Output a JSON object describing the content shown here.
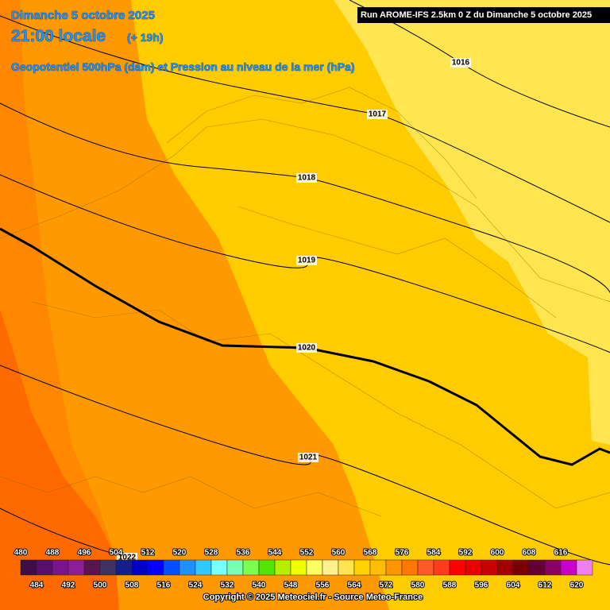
{
  "header": {
    "date": "Dimanche 5 octobre 2025",
    "time": "21:00 locale",
    "lead": "(+ 19h)",
    "subtitle": "Geopotentiel 500hPa (dam) et Pression au niveau de la mer (hPa)",
    "run": "Run AROME-IFS 2.5km 0 Z du Dimanche 5 octobre 2025"
  },
  "isobar_labels": [
    1016,
    1017,
    1018,
    1019,
    1020,
    1021,
    1022
  ],
  "legend": {
    "top_labels": [
      480,
      488,
      496,
      504,
      512,
      520,
      528,
      536,
      544,
      552,
      560,
      568,
      576,
      584,
      592,
      600,
      608,
      616
    ],
    "bottom_labels": [
      484,
      492,
      500,
      508,
      516,
      524,
      532,
      540,
      548,
      556,
      564,
      572,
      580,
      588,
      596,
      604,
      612,
      620
    ],
    "colors": [
      "#3c0f46",
      "#5a0f6e",
      "#78148c",
      "#8c1e96",
      "#5a1450",
      "#3c3264",
      "#141e8c",
      "#0000c8",
      "#0000ff",
      "#0050ff",
      "#1e90ff",
      "#32c8ff",
      "#78ffff",
      "#78ffb4",
      "#78ff50",
      "#50e600",
      "#b4f000",
      "#f0ff00",
      "#ffff64",
      "#fff08c",
      "#ffe650",
      "#ffd200",
      "#ffbe00",
      "#ff9600",
      "#ff7800",
      "#ff5a28",
      "#ff3c1e",
      "#ff0000",
      "#e60000",
      "#c80000",
      "#a00000",
      "#780000",
      "#640032",
      "#8c0064",
      "#c800c8",
      "#f080f0"
    ]
  },
  "footer": "Copyright © 2025 Meteociel.fr - Source Meteo-France"
}
